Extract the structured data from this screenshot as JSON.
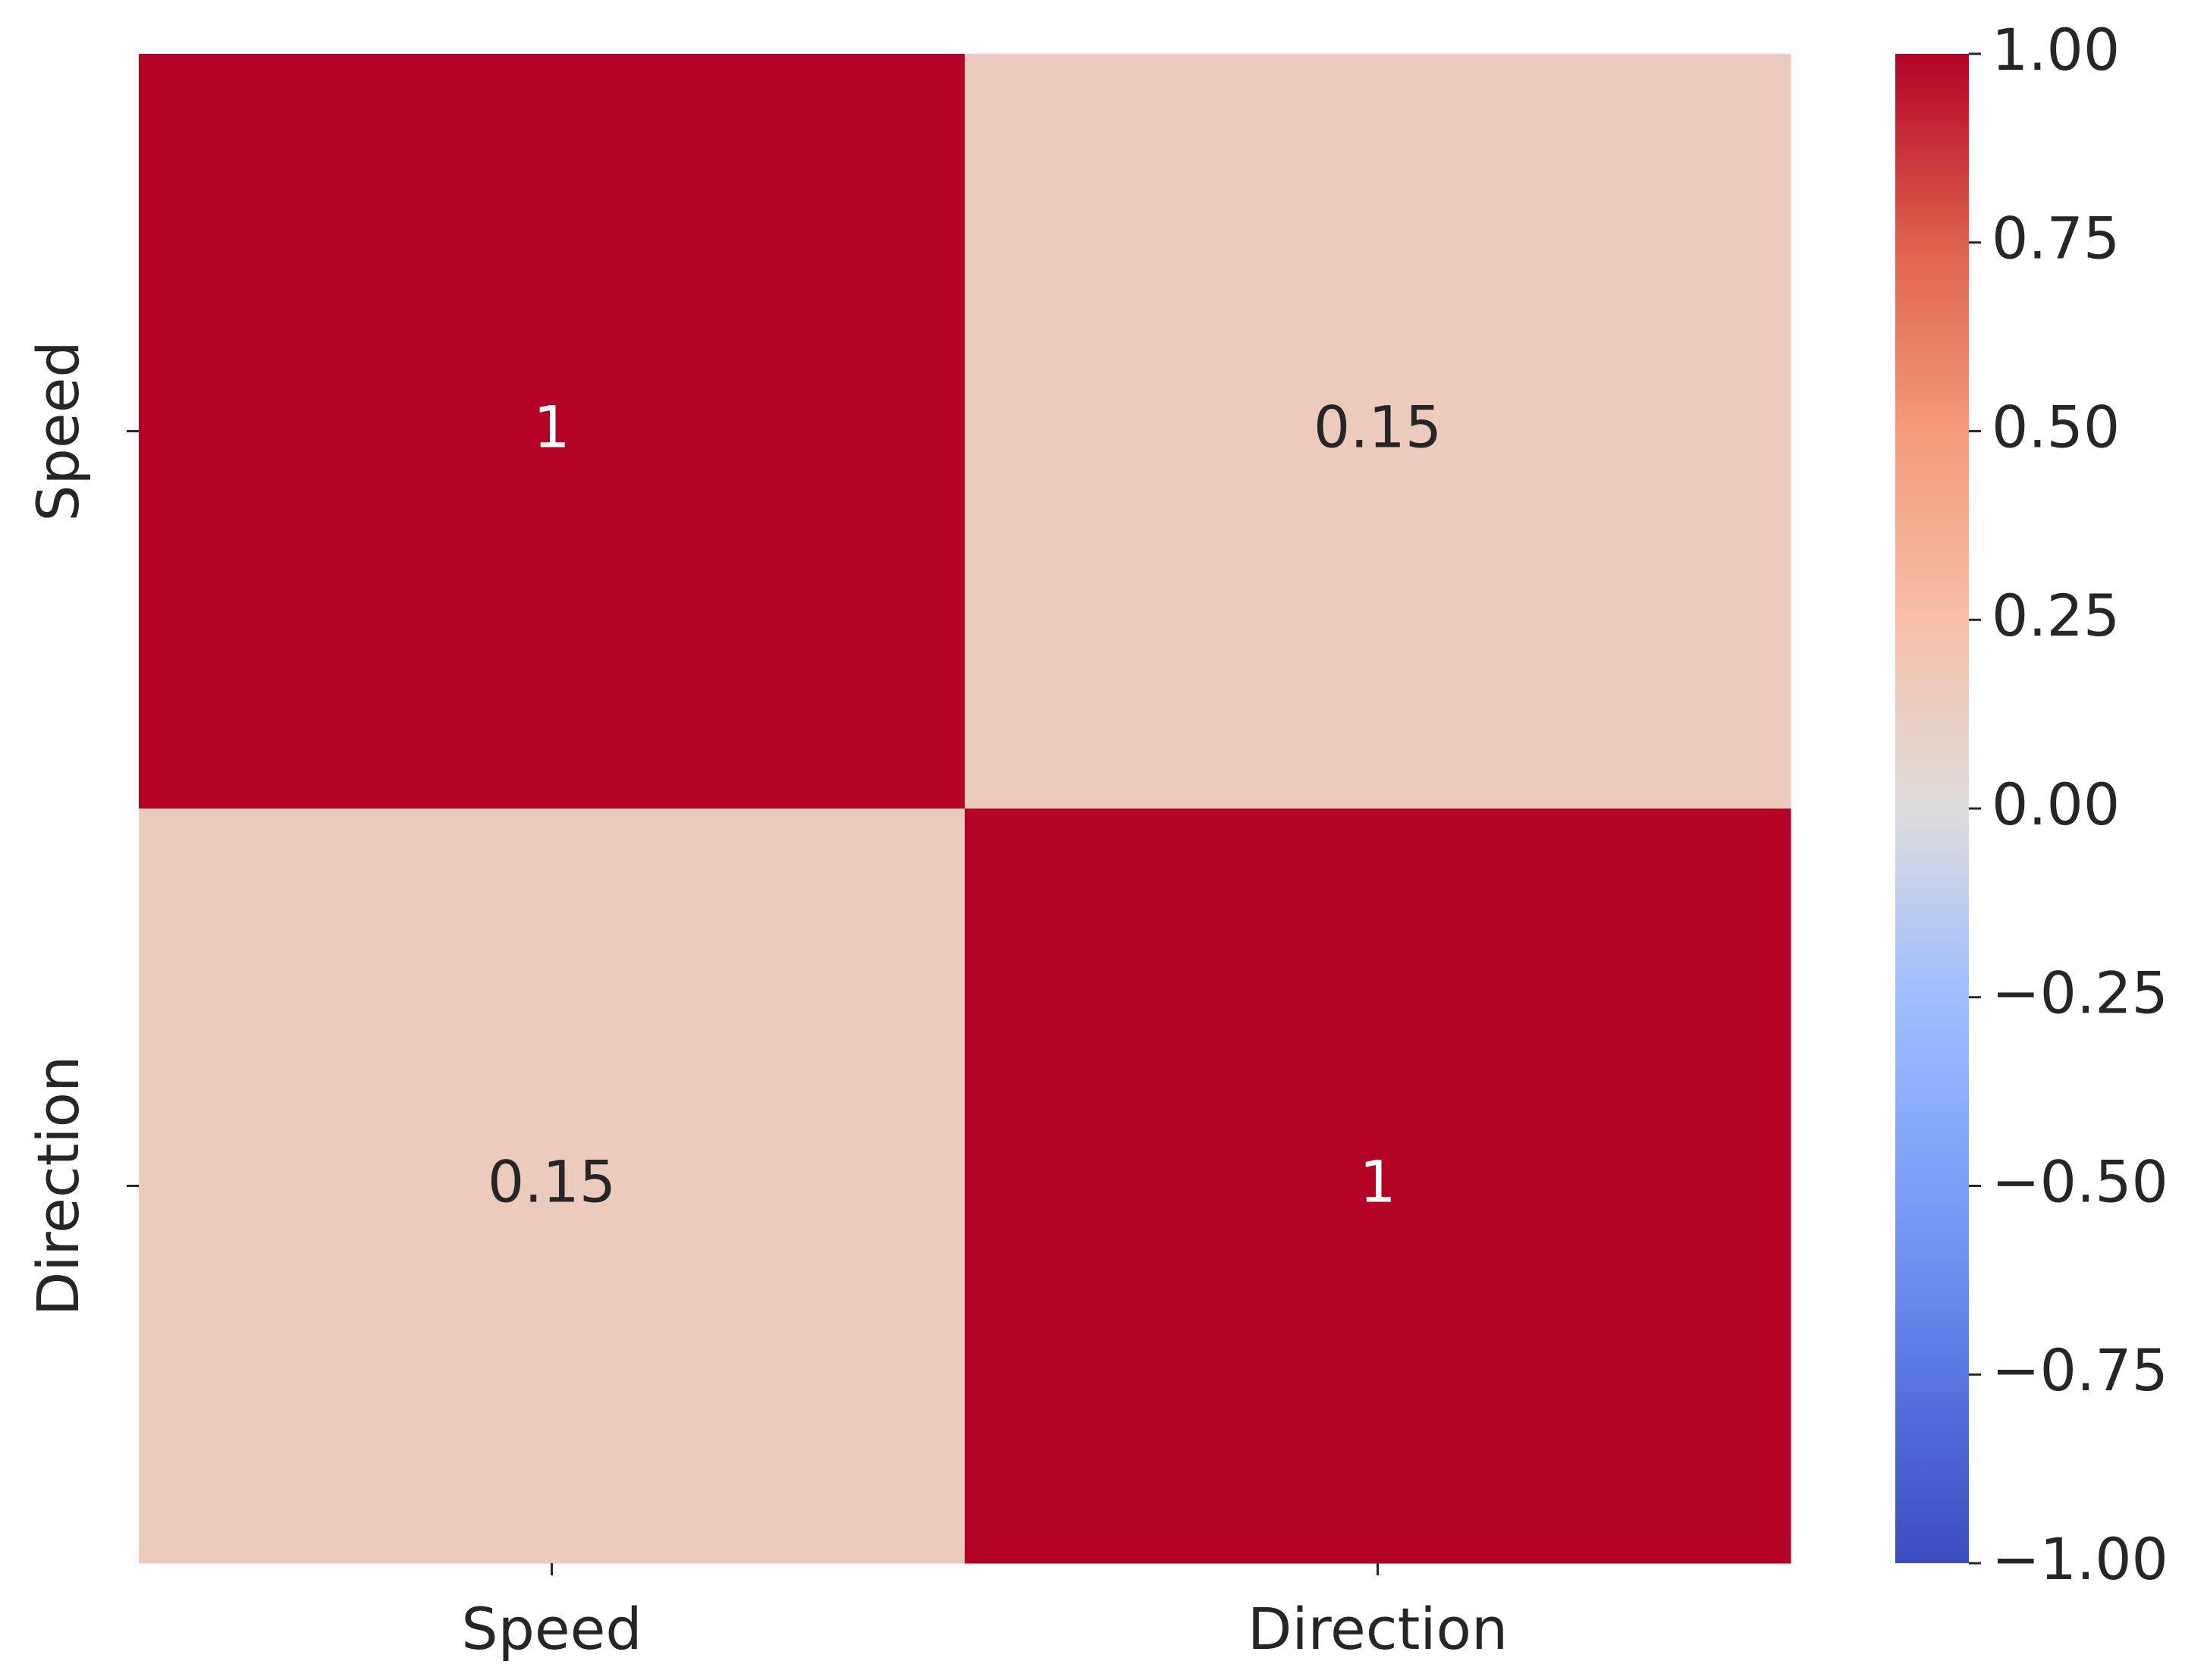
{
  "chart_data": {
    "type": "heatmap",
    "x_categories": [
      "Speed",
      "Direction"
    ],
    "y_categories": [
      "Speed",
      "Direction"
    ],
    "values": [
      [
        1,
        0.15
      ],
      [
        0.15,
        1
      ]
    ],
    "colormap": "coolwarm",
    "clim": [
      -1,
      1
    ],
    "cticks": [
      {
        "value": 1,
        "label": "1.00"
      },
      {
        "value": 0.75,
        "label": "0.75"
      },
      {
        "value": 0.5,
        "label": "0.50"
      },
      {
        "value": 0.25,
        "label": "0.25"
      },
      {
        "value": 0,
        "label": "0.00"
      },
      {
        "value": -0.25,
        "label": "−0.25"
      },
      {
        "value": -0.5,
        "label": "−0.50"
      },
      {
        "value": -0.75,
        "label": "−0.75"
      },
      {
        "value": -1,
        "label": "−1.00"
      }
    ]
  }
}
